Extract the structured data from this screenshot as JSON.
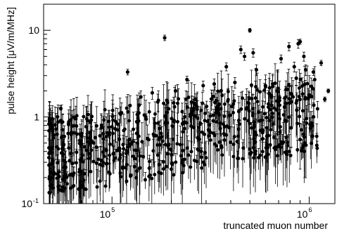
{
  "chart_data": {
    "type": "scatter",
    "xlabel": "truncated muon number",
    "ylabel": "pulse height [μV/m/MHz]",
    "x_scale": "log",
    "y_scale": "log",
    "xlim": [
      45000,
      1350000
    ],
    "ylim": [
      0.1,
      20
    ],
    "grid": false,
    "x_ticks": [
      {
        "value": 100000,
        "base": "10",
        "exp": "5"
      },
      {
        "value": 1000000,
        "base": "10",
        "exp": "6"
      }
    ],
    "y_ticks": [
      {
        "value": 0.1,
        "label": "10",
        "exp": "-1"
      },
      {
        "value": 1,
        "label": "1",
        "exp": ""
      },
      {
        "value": 10,
        "label": "10",
        "exp": ""
      }
    ],
    "series": [
      {
        "note_points": "x = truncated muon number, y = pulse height; err = symmetric error",
        "points": [
          {
            "x": 55000,
            "y": 1.25,
            "err": 0.05
          },
          {
            "x": 120000,
            "y": 3.3,
            "err": 0.25
          },
          {
            "x": 185000,
            "y": 8.2,
            "err": 0.6
          },
          {
            "x": 240000,
            "y": 2.7,
            "err": 0.25
          },
          {
            "x": 290000,
            "y": 2.3,
            "err": 0.3
          },
          {
            "x": 330000,
            "y": 2.4,
            "err": 0.35
          },
          {
            "x": 380000,
            "y": 3.8,
            "err": 0.4
          },
          {
            "x": 420000,
            "y": 2.5,
            "err": 0.35
          },
          {
            "x": 450000,
            "y": 6.0,
            "err": 0.6
          },
          {
            "x": 470000,
            "y": 5.0,
            "err": 0.5
          },
          {
            "x": 500000,
            "y": 10.0,
            "err": 0.5
          },
          {
            "x": 520000,
            "y": 5.5,
            "err": 0.6
          },
          {
            "x": 540000,
            "y": 3.5,
            "err": 0.5
          },
          {
            "x": 600000,
            "y": 2.3,
            "err": 0.4
          },
          {
            "x": 720000,
            "y": 4.7,
            "err": 0.5
          },
          {
            "x": 790000,
            "y": 6.5,
            "err": 0.7
          },
          {
            "x": 840000,
            "y": 3.8,
            "err": 0.5
          },
          {
            "x": 860000,
            "y": 2.8,
            "err": 0.5
          },
          {
            "x": 880000,
            "y": 7.0,
            "err": 0.8
          },
          {
            "x": 900000,
            "y": 7.4,
            "err": 0.5
          },
          {
            "x": 940000,
            "y": 5.0,
            "err": 0.6
          },
          {
            "x": 960000,
            "y": 3.5,
            "err": 0.5
          },
          {
            "x": 1000000,
            "y": 1.7,
            "err": 0.3
          },
          {
            "x": 1050000,
            "y": 3.3,
            "err": 0.3
          },
          {
            "x": 1150000,
            "y": 4.2,
            "err": 0.3
          },
          {
            "x": 1250000,
            "y": 2.0,
            "err": 0.1
          },
          {
            "x": 1200000,
            "y": 1.6,
            "err": 0.1
          },
          {
            "x": 210000,
            "y": 2.0,
            "err": 0.3
          },
          {
            "x": 160000,
            "y": 1.9,
            "err": 0.3
          },
          {
            "x": 140000,
            "y": 1.7,
            "err": 0.3
          },
          {
            "x": 700000,
            "y": 1.5,
            "err": 0.4
          },
          {
            "x": 750000,
            "y": 1.3,
            "err": 0.4
          },
          {
            "x": 650000,
            "y": 1.1,
            "err": 0.4
          },
          {
            "x": 560000,
            "y": 0.9,
            "err": 0.3
          },
          {
            "x": 580000,
            "y": 0.7,
            "err": 0.3
          },
          {
            "x": 610000,
            "y": 0.6,
            "err": 0.3
          },
          {
            "x": 810000,
            "y": 0.75,
            "err": 0.3
          },
          {
            "x": 900000,
            "y": 0.55,
            "err": 0.3
          },
          {
            "x": 950000,
            "y": 0.5,
            "err": 0.3
          }
        ]
      }
    ]
  }
}
